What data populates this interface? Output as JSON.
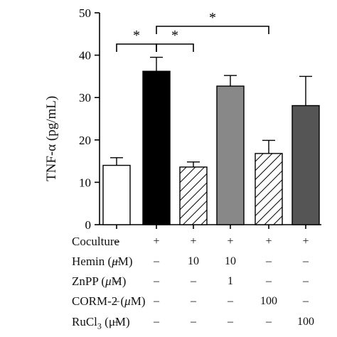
{
  "chart_data": {
    "type": "bar",
    "ylabel": "TNF-α (pg/mL)",
    "ylim": [
      0,
      50
    ],
    "yticks": [
      "0",
      "10",
      "20",
      "30",
      "40",
      "50"
    ],
    "bars": [
      {
        "value": 14.0,
        "error": 1.8,
        "fill": "#ffffff",
        "pattern": "none"
      },
      {
        "value": 36.2,
        "error": 3.3,
        "fill": "#000000",
        "pattern": "none"
      },
      {
        "value": 13.6,
        "error": 1.2,
        "fill": "#ffffff",
        "pattern": "hatch"
      },
      {
        "value": 32.7,
        "error": 2.5,
        "fill": "#888888",
        "pattern": "none"
      },
      {
        "value": 16.8,
        "error": 3.1,
        "fill": "#ffffff",
        "pattern": "hatch"
      },
      {
        "value": 28.1,
        "error": 6.9,
        "fill": "#555555",
        "pattern": "none"
      }
    ],
    "significance": [
      {
        "from": 0,
        "to": 1,
        "label": "*"
      },
      {
        "from": 1,
        "to": 2,
        "label": "*"
      },
      {
        "from": 1,
        "to": 4,
        "label": "*"
      }
    ],
    "conditions": [
      {
        "label": "Coculture",
        "label_italic": "",
        "label_unit": "",
        "values": [
          "–",
          "+",
          "+",
          "+",
          "+",
          "+"
        ]
      },
      {
        "label": "Hemin (",
        "label_italic": "μ",
        "label_unit": "M)",
        "values": [
          "–",
          "–",
          "10",
          "10",
          "–",
          "–"
        ]
      },
      {
        "label": "ZnPP (",
        "label_italic": "μ",
        "label_unit": "M)",
        "values": [
          "–",
          "–",
          "–",
          "1",
          "–",
          "–"
        ]
      },
      {
        "label": "CORM-2 (",
        "label_italic": "μ",
        "label_unit": "M)",
        "values": [
          "–",
          "–",
          "–",
          "–",
          "100",
          "–"
        ]
      },
      {
        "label": "RuCl",
        "label_italic": "",
        "label_unit": "(μM)",
        "label_sub": "3",
        "values": [
          "–",
          "–",
          "–",
          "–",
          "–",
          "100"
        ]
      }
    ]
  }
}
